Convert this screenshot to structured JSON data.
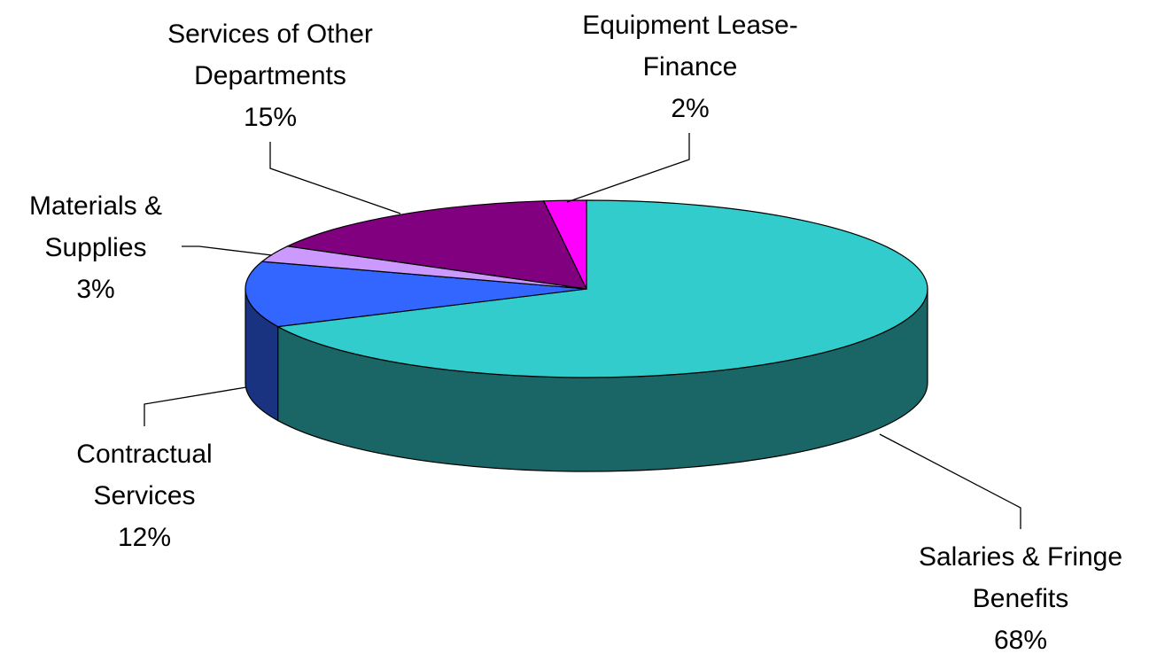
{
  "chart_data": {
    "type": "pie3d",
    "categories": [
      "Salaries & Fringe Benefits",
      "Contractual Services",
      "Materials & Supplies",
      "Services of Other Departments",
      "Equipment Lease-Finance"
    ],
    "values": [
      68,
      12,
      3,
      15,
      2
    ],
    "value_labels": [
      "68%",
      "12%",
      "3%",
      "15%",
      "2%"
    ],
    "colors": [
      "#33cccc",
      "#3366ff",
      "#cc99ff",
      "#800080",
      "#ff00ff"
    ]
  }
}
